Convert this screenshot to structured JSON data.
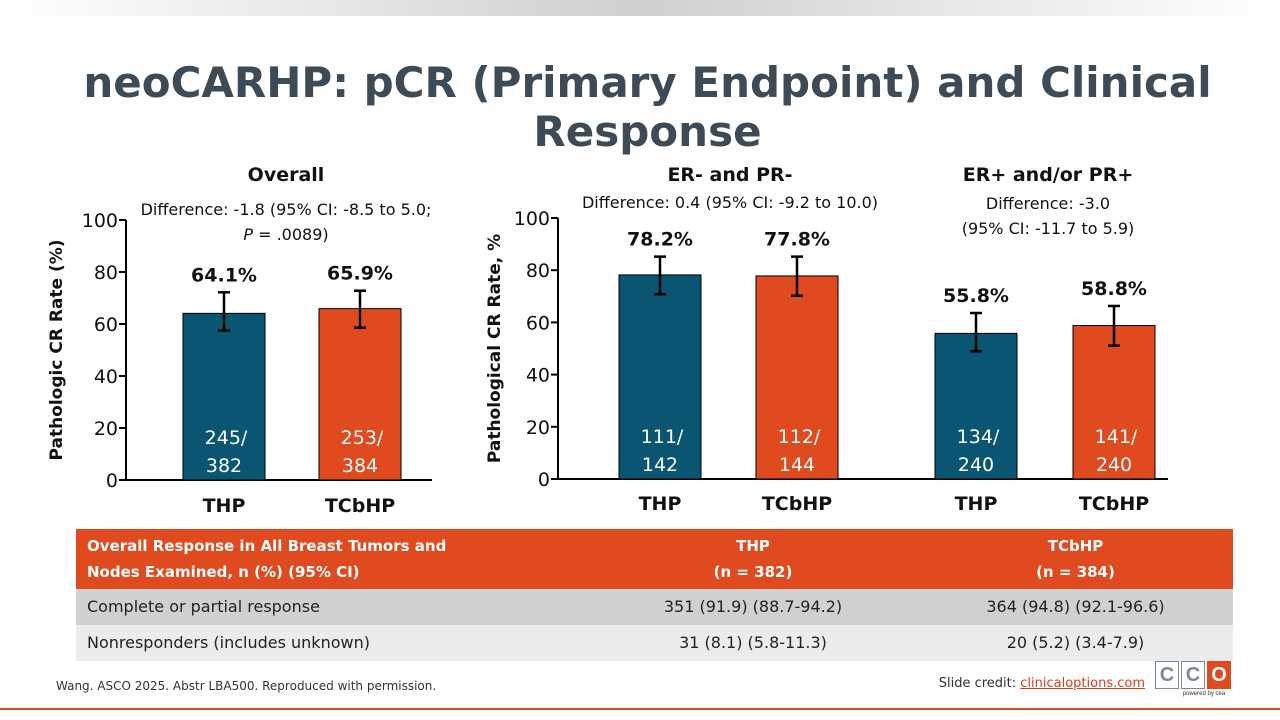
{
  "title": "neoCARHP: pCR (Primary Endpoint) and Clinical Response",
  "colors": {
    "thp": "#0a5571",
    "tcbhp": "#e04a1f",
    "accent": "#e04a1f"
  },
  "chart_data": [
    {
      "type": "bar",
      "title": "Overall",
      "subtitle_lines": [
        "Difference: -1.8 (95% CI: -8.5 to 5.0;",
        "P = .0089)"
      ],
      "ylabel": "Pathologic CR Rate (%)",
      "ylim": [
        0,
        100
      ],
      "yticks": [
        "0",
        "20",
        "40",
        "60",
        "80",
        "100"
      ],
      "categories": [
        "THP",
        "TCbHP"
      ],
      "values": [
        64.1,
        65.9
      ],
      "value_labels": [
        "64.1%",
        "65.9%"
      ],
      "error_low": [
        57.5,
        58.6
      ],
      "error_high": [
        72.2,
        72.8
      ],
      "bar_label_lines": [
        [
          "245/",
          "382"
        ],
        [
          "253/",
          "384"
        ]
      ]
    },
    {
      "type": "bar",
      "title": "ER- and PR-",
      "subtitle_lines": [
        "Difference: 0.4 (95% CI: -9.2 to 10.0)"
      ],
      "ylabel": "Pathological CR Rate, %",
      "ylim": [
        0,
        100
      ],
      "yticks": [
        "0",
        "20",
        "40",
        "60",
        "80",
        "100"
      ],
      "categories": [
        "THP",
        "TCbHP"
      ],
      "values": [
        78.2,
        77.8
      ],
      "value_labels": [
        "78.2%",
        "77.8%"
      ],
      "error_low": [
        70.8,
        70.2
      ],
      "error_high": [
        85.2,
        85.2
      ],
      "bar_label_lines": [
        [
          "111/",
          "142"
        ],
        [
          "112/",
          "144"
        ]
      ]
    },
    {
      "type": "bar",
      "title": "ER+ and/or PR+",
      "subtitle_lines": [
        "Difference: -3.0",
        "(95% CI: -11.7 to 5.9)"
      ],
      "categories": [
        "THP",
        "TCbHP"
      ],
      "values": [
        55.8,
        58.8
      ],
      "value_labels": [
        "55.8%",
        "58.8%"
      ],
      "error_low": [
        48.9,
        51.1
      ],
      "error_high": [
        63.6,
        66.3
      ],
      "bar_label_lines": [
        [
          "134/",
          "240"
        ],
        [
          "141/",
          "240"
        ]
      ]
    }
  ],
  "table": {
    "header": {
      "col0": [
        "Overall Response in All Breast Tumors and",
        "Nodes Examined, n (%) (95% CI)"
      ],
      "col1": [
        "THP",
        "(n = 382)"
      ],
      "col2": [
        "TCbHP",
        "(n = 384)"
      ]
    },
    "rows": [
      {
        "label": "Complete or partial response",
        "thp": "351 (91.9) (88.7-94.2)",
        "tcbhp": "364 (94.8) (92.1-96.6)"
      },
      {
        "label": "Nonresponders (includes unknown)",
        "thp": "31 (8.1) (5.8-11.3)",
        "tcbhp": "20 (5.2) (3.4-7.9)"
      }
    ]
  },
  "footer": "Wang. ASCO 2025. Abstr LBA500. Reproduced with permission.",
  "credit_prefix": "Slide credit: ",
  "credit_link": "clinicaloptions.com",
  "logo": {
    "letters": [
      "C",
      "C",
      "O"
    ],
    "sub": "powered by cea"
  }
}
